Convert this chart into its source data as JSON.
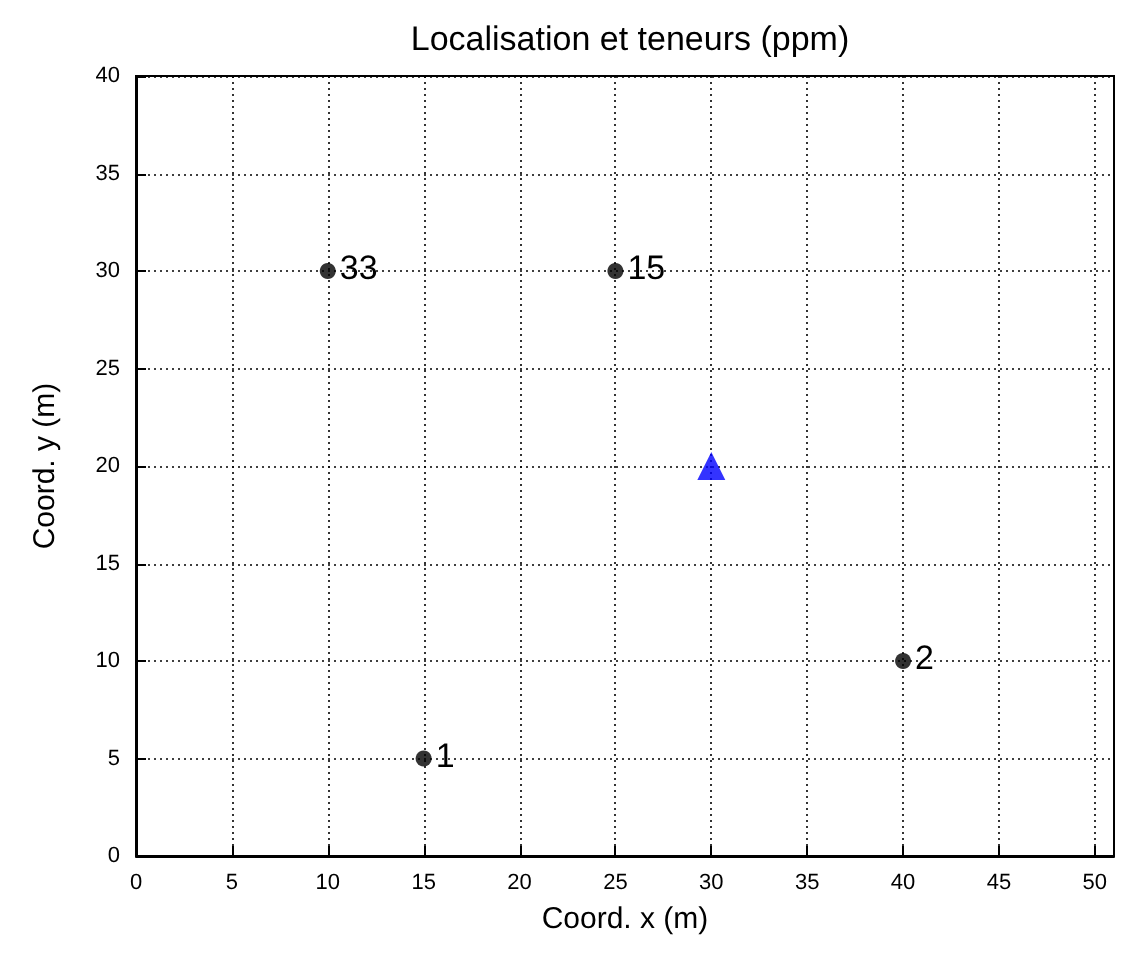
{
  "chart_data": {
    "type": "scatter",
    "title": "Localisation et teneurs (ppm)",
    "xlabel": "Coord. x (m)",
    "ylabel": "Coord. y (m)",
    "xlim": [
      0,
      51
    ],
    "xticks": [
      0,
      5,
      10,
      15,
      20,
      25,
      30,
      35,
      40,
      45,
      50
    ],
    "ylim": [
      0,
      40
    ],
    "yticks": [
      0,
      5,
      10,
      15,
      20,
      25,
      30,
      35,
      40
    ],
    "grid": true,
    "annotations": [
      {
        "text": "33",
        "x": 10,
        "y": 30
      },
      {
        "text": "15",
        "x": 25,
        "y": 30
      },
      {
        "text": "1",
        "x": 15,
        "y": 5
      },
      {
        "text": "2",
        "x": 40,
        "y": 10
      }
    ],
    "series": [
      {
        "x": [
          10,
          25,
          15,
          40
        ],
        "values": [
          30,
          30,
          5,
          10
        ],
        "color": "#000000",
        "marker": "circle"
      },
      {
        "x": [
          30
        ],
        "values": [
          20
        ],
        "color": "#0000ff",
        "marker": "triangle"
      }
    ]
  }
}
